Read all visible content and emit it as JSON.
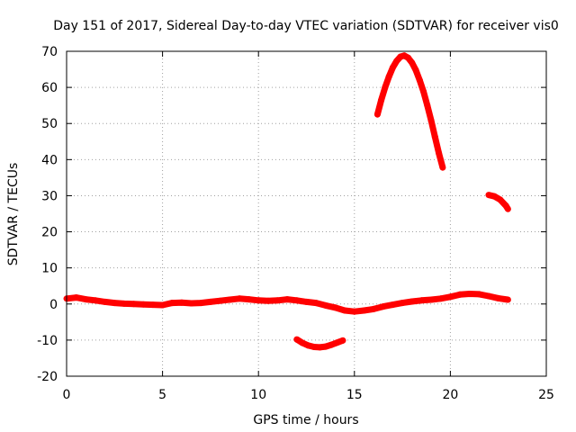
{
  "chart_data": {
    "type": "scatter",
    "title": "Day 151 of 2017, Sidereal Day-to-day VTEC variation (SDTVAR) for receiver vis0",
    "xlabel": "GPS time / hours",
    "ylabel": "SDTVAR / TECUs",
    "xlim": [
      0,
      25
    ],
    "ylim": [
      -20,
      70
    ],
    "xticks": [
      0,
      5,
      10,
      15,
      20,
      25
    ],
    "xtick_labels": [
      "0",
      "5",
      "10",
      "15",
      "20",
      "25"
    ],
    "yticks": [
      -20,
      -10,
      0,
      10,
      20,
      30,
      40,
      50,
      60,
      70
    ],
    "ytick_labels": [
      "-20",
      "-10",
      "0",
      "10",
      "20",
      "30",
      "40",
      "50",
      "60",
      "70"
    ],
    "grid": true,
    "series_color": "#ff0000",
    "series": [
      {
        "name": "baseline",
        "points": [
          [
            0,
            1.5
          ],
          [
            0.5,
            1.8
          ],
          [
            1,
            1.3
          ],
          [
            1.5,
            1.0
          ],
          [
            2,
            0.6
          ],
          [
            2.5,
            0.3
          ],
          [
            3,
            0.1
          ],
          [
            3.5,
            0.0
          ],
          [
            4,
            -0.1
          ],
          [
            4.5,
            -0.2
          ],
          [
            5,
            -0.3
          ],
          [
            5.5,
            0.3
          ],
          [
            6,
            0.4
          ],
          [
            6.5,
            0.2
          ],
          [
            7,
            0.3
          ],
          [
            7.5,
            0.6
          ],
          [
            8,
            0.9
          ],
          [
            8.5,
            1.2
          ],
          [
            9,
            1.5
          ],
          [
            9.5,
            1.3
          ],
          [
            10,
            1.0
          ],
          [
            10.5,
            0.9
          ],
          [
            11,
            1.0
          ],
          [
            11.5,
            1.3
          ],
          [
            12,
            1.0
          ],
          [
            12.5,
            0.6
          ],
          [
            13,
            0.3
          ],
          [
            13.5,
            -0.4
          ],
          [
            14,
            -1.0
          ],
          [
            14.5,
            -1.8
          ],
          [
            15,
            -2.1
          ],
          [
            15.5,
            -1.8
          ],
          [
            16,
            -1.4
          ],
          [
            16.5,
            -0.7
          ],
          [
            17,
            -0.2
          ],
          [
            17.5,
            0.3
          ],
          [
            18,
            0.7
          ],
          [
            18.5,
            1.0
          ],
          [
            19,
            1.2
          ],
          [
            19.5,
            1.5
          ],
          [
            20,
            2.0
          ],
          [
            20.5,
            2.6
          ],
          [
            21,
            2.8
          ],
          [
            21.5,
            2.7
          ],
          [
            22,
            2.2
          ],
          [
            22.5,
            1.6
          ],
          [
            23,
            1.2
          ]
        ]
      },
      {
        "name": "dip",
        "points": [
          [
            12.0,
            -9.8
          ],
          [
            12.3,
            -10.8
          ],
          [
            12.6,
            -11.5
          ],
          [
            12.9,
            -11.9
          ],
          [
            13.2,
            -12.0
          ],
          [
            13.5,
            -11.8
          ],
          [
            13.8,
            -11.3
          ],
          [
            14.1,
            -10.7
          ],
          [
            14.4,
            -10.1
          ]
        ]
      },
      {
        "name": "arc",
        "points": [
          [
            16.2,
            52.5
          ],
          [
            16.4,
            56.5
          ],
          [
            16.6,
            60.0
          ],
          [
            16.8,
            63.0
          ],
          [
            17.0,
            65.5
          ],
          [
            17.2,
            67.3
          ],
          [
            17.4,
            68.5
          ],
          [
            17.6,
            68.8
          ],
          [
            17.8,
            68.2
          ],
          [
            18.0,
            66.8
          ],
          [
            18.2,
            64.8
          ],
          [
            18.4,
            62.0
          ],
          [
            18.6,
            58.8
          ],
          [
            18.8,
            55.0
          ],
          [
            19.0,
            50.8
          ],
          [
            19.2,
            46.3
          ],
          [
            19.4,
            41.8
          ],
          [
            19.6,
            37.8
          ]
        ]
      },
      {
        "name": "tail",
        "points": [
          [
            22.0,
            30.2
          ],
          [
            22.3,
            29.8
          ],
          [
            22.6,
            28.9
          ],
          [
            22.9,
            27.2
          ],
          [
            23.0,
            26.3
          ]
        ]
      }
    ]
  }
}
